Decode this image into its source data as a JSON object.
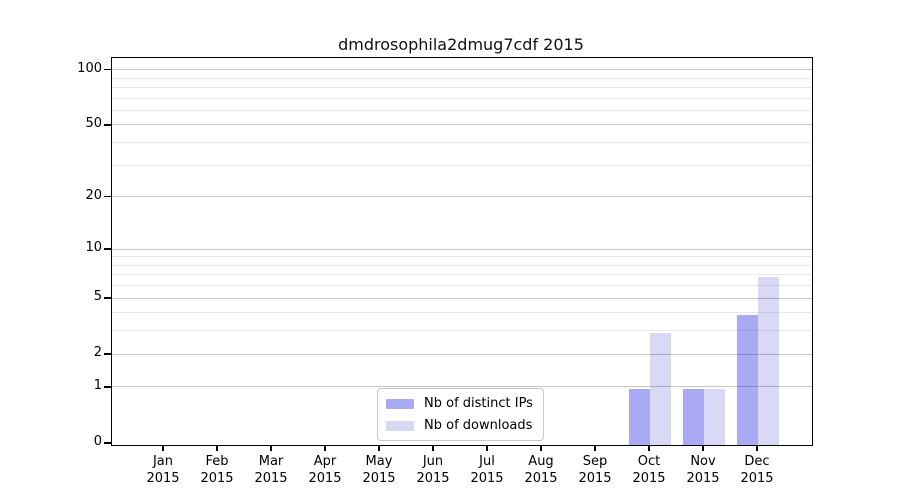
{
  "page": {
    "background": "#ffffff"
  },
  "chart_data": {
    "type": "bar",
    "title": "dmdrosophila2dmug7cdf 2015",
    "year_label": "2015",
    "categories": [
      "Jan",
      "Feb",
      "Mar",
      "Apr",
      "May",
      "Jun",
      "Jul",
      "Aug",
      "Sep",
      "Oct",
      "Nov",
      "Dec"
    ],
    "series": [
      {
        "name": "Nb of distinct IPs",
        "color": "#a9a9f4",
        "values": [
          0,
          0,
          0,
          0,
          0,
          0,
          0,
          0,
          0,
          1,
          1,
          4
        ]
      },
      {
        "name": "Nb of downloads",
        "color": "#d9d9f6",
        "values": [
          0,
          0,
          0,
          0,
          0,
          0,
          0,
          0,
          0,
          3,
          1,
          7
        ]
      }
    ],
    "scale": "log1p",
    "ylim": [
      0,
      115
    ],
    "yticks_major": [
      0,
      1,
      2,
      5,
      10,
      20,
      50,
      100
    ],
    "yticks_minor": [
      3,
      4,
      6,
      7,
      8,
      9,
      30,
      40,
      60,
      70,
      80,
      90
    ],
    "xlabel": "",
    "ylabel": "",
    "grid": "horizontal",
    "legend_position": "bottom-center-inside",
    "colors": {
      "grid_major": "#c4c4cc",
      "grid_minor": "#e9e9ec",
      "axis": "#000000",
      "background": "#ffffff"
    }
  }
}
